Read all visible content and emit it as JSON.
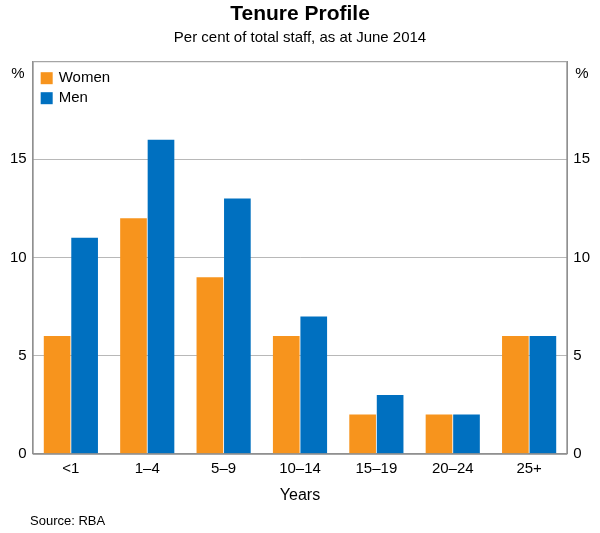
{
  "chart_data": {
    "type": "bar",
    "title": "Tenure Profile",
    "subtitle": "Per cent of total staff, as at June 2014",
    "x_label": "Years",
    "y_label": "%",
    "source": "Source: RBA",
    "categories": [
      "<1",
      "1–4",
      "5–9",
      "10–14",
      "15–19",
      "20–24",
      "25+"
    ],
    "series": [
      {
        "name": "Women",
        "color": "#f7941d",
        "values": [
          6,
          12,
          9,
          6,
          2,
          2,
          6
        ]
      },
      {
        "name": "Men",
        "color": "#0070c0",
        "values": [
          11,
          16,
          13,
          7,
          3,
          2,
          6
        ]
      }
    ],
    "ylim": [
      0,
      20
    ],
    "yticks": [
      0,
      5,
      10,
      15
    ],
    "grid": true,
    "legend": "upper left"
  }
}
